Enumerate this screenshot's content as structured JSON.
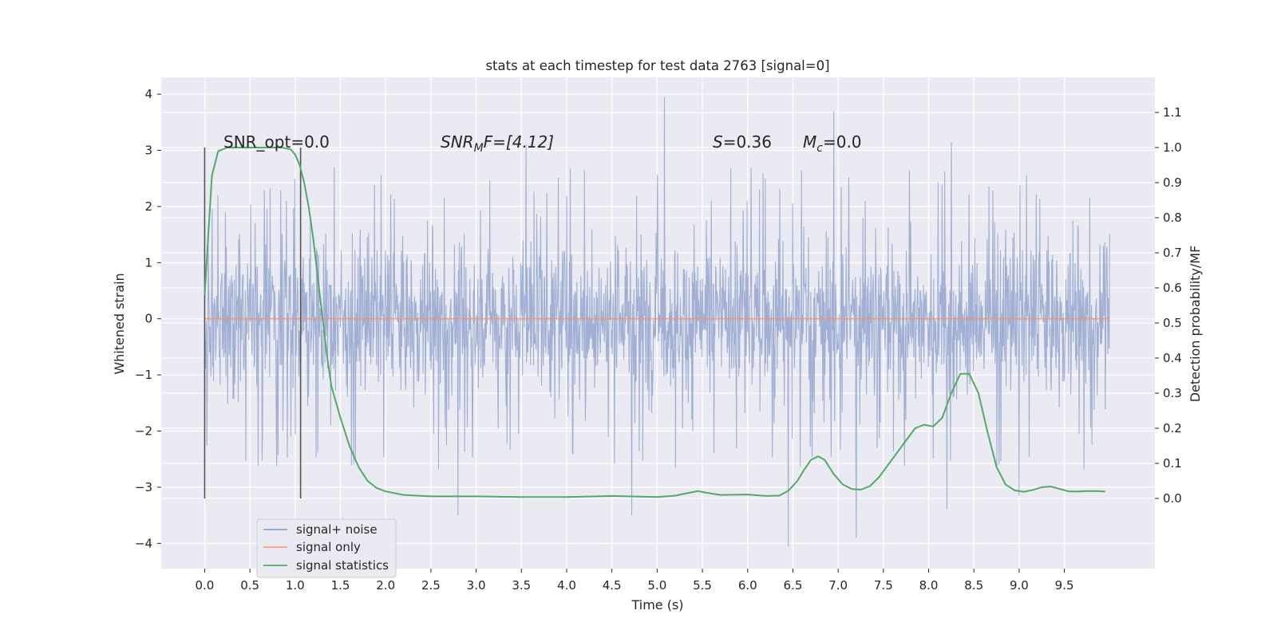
{
  "chart_data": {
    "type": "line",
    "title": "stats at each timestep for test data 2763 [signal=0]",
    "xlabel": "Time (s)",
    "ylabel_left": "Whitened strain",
    "ylabel_right": "Detection probability/MF",
    "xlim": [
      -0.48,
      10.5
    ],
    "ylim_left": [
      -4.45,
      4.3
    ],
    "ylim_right": [
      -0.2,
      1.2
    ],
    "x_ticks": [
      "0.0",
      "0.5",
      "1.0",
      "1.5",
      "2.0",
      "2.5",
      "3.0",
      "3.5",
      "4.0",
      "4.5",
      "5.0",
      "5.5",
      "6.0",
      "6.5",
      "7.0",
      "7.5",
      "8.0",
      "8.5",
      "9.0",
      "9.5"
    ],
    "y_left_ticks": [
      "4",
      "3",
      "2",
      "1",
      "0",
      "−1",
      "−2",
      "−3",
      "−4"
    ],
    "y_right_ticks": [
      "1.1",
      "1.0",
      "0.9",
      "0.8",
      "0.7",
      "0.6",
      "0.5",
      "0.4",
      "0.3",
      "0.2",
      "0.1",
      "0.0"
    ],
    "grid": true,
    "annotations": {
      "snr_opt": "SNR_opt=0.0",
      "snr_mf_sym": "SNR",
      "snr_mf_sub": "M",
      "snr_mf_rest": "F=[4.12]",
      "s_sym": "S",
      "s_rest": "=0.36",
      "mc_sym": "M",
      "mc_sub": "c",
      "mc_rest": "=0.0"
    },
    "vlines": [
      0.0,
      1.06
    ],
    "legend": {
      "position": "lower-left",
      "entries": [
        {
          "label": "signal+ noise",
          "color": "#8da0cb"
        },
        {
          "label": "signal only",
          "color": "#fc8d62"
        },
        {
          "label": "signal statistics",
          "color": "#55a868"
        }
      ]
    },
    "series": [
      {
        "name": "signal+ noise",
        "axis": "left",
        "t_start": 0.0,
        "t_end": 10.0,
        "samples": 2048,
        "envelope": {
          "p95_mean": 1.2,
          "max": 3.95,
          "min": -4.05
        },
        "notable_peaks": [
          [
            5.08,
            3.95
          ],
          [
            6.95,
            3.7
          ],
          [
            3.55,
            3.1
          ],
          [
            8.25,
            3.15
          ],
          [
            6.45,
            -4.05
          ],
          [
            4.72,
            -3.5
          ],
          [
            2.8,
            -3.5
          ],
          [
            7.2,
            -3.9
          ],
          [
            8.2,
            -3.4
          ],
          [
            9.0,
            -3.15
          ]
        ]
      },
      {
        "name": "signal only",
        "axis": "left",
        "x": [
          0.0,
          10.0
        ],
        "y": [
          0.0,
          0.0
        ]
      },
      {
        "name": "signal statistics",
        "axis": "right",
        "x": [
          0.0,
          0.08,
          0.15,
          0.25,
          0.35,
          0.5,
          0.7,
          0.85,
          0.95,
          1.0,
          1.05,
          1.1,
          1.15,
          1.2,
          1.25,
          1.3,
          1.35,
          1.4,
          1.5,
          1.6,
          1.7,
          1.8,
          1.9,
          2.0,
          2.2,
          2.5,
          3.0,
          3.5,
          4.0,
          4.5,
          5.0,
          5.2,
          5.35,
          5.45,
          5.55,
          5.7,
          6.0,
          6.2,
          6.35,
          6.45,
          6.55,
          6.62,
          6.7,
          6.78,
          6.85,
          6.95,
          7.05,
          7.15,
          7.25,
          7.35,
          7.45,
          7.55,
          7.65,
          7.75,
          7.85,
          7.95,
          8.05,
          8.15,
          8.25,
          8.35,
          8.45,
          8.55,
          8.65,
          8.75,
          8.85,
          8.95,
          9.05,
          9.15,
          9.25,
          9.35,
          9.45,
          9.55,
          9.65,
          9.75,
          9.85,
          9.95
        ],
        "y": [
          0.58,
          0.92,
          0.99,
          1.0,
          1.0,
          1.0,
          1.0,
          1.0,
          0.995,
          0.98,
          0.95,
          0.9,
          0.83,
          0.74,
          0.63,
          0.52,
          0.41,
          0.32,
          0.23,
          0.15,
          0.09,
          0.05,
          0.03,
          0.02,
          0.01,
          0.006,
          0.006,
          0.004,
          0.004,
          0.007,
          0.004,
          0.008,
          0.016,
          0.021,
          0.016,
          0.01,
          0.011,
          0.007,
          0.008,
          0.022,
          0.05,
          0.08,
          0.11,
          0.12,
          0.11,
          0.07,
          0.04,
          0.027,
          0.025,
          0.035,
          0.06,
          0.095,
          0.13,
          0.165,
          0.2,
          0.21,
          0.205,
          0.23,
          0.3,
          0.355,
          0.355,
          0.3,
          0.19,
          0.09,
          0.04,
          0.023,
          0.019,
          0.024,
          0.032,
          0.034,
          0.027,
          0.02,
          0.02,
          0.021,
          0.021,
          0.02
        ]
      }
    ]
  }
}
